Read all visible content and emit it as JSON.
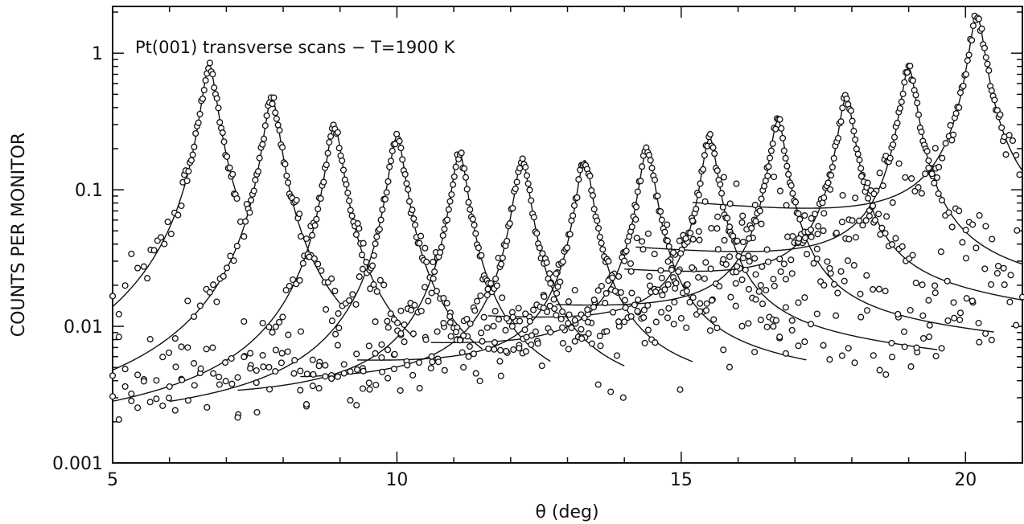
{
  "chart_data": {
    "type": "scatter",
    "title": "Pt(001) transverse scans − T=1900 K",
    "xlabel": "θ (deg)",
    "ylabel": "COUNTS PER MONITOR",
    "xlim": [
      5,
      21
    ],
    "ylim": [
      0.001,
      2.2
    ],
    "yscale": "log",
    "grid": false,
    "legend": "none",
    "x_ticks": [
      5,
      10,
      15,
      20
    ],
    "y_ticks": [
      0.001,
      0.01,
      0.1,
      1
    ],
    "x_tick_labels": [
      "5",
      "10",
      "15",
      "20"
    ],
    "y_tick_labels": [
      "0.001",
      "0.01",
      "0.1",
      "1"
    ],
    "series": [
      {
        "peak_x": 6.7,
        "peak_y": 0.78,
        "background": 0.0014,
        "bg_slope": 0.03,
        "x_start": 5.0,
        "x_end": 7.2
      },
      {
        "peak_x": 7.8,
        "peak_y": 0.46,
        "background": 0.0016,
        "bg_slope": 0.02,
        "x_start": 5.0,
        "x_end": 9.0
      },
      {
        "peak_x": 8.9,
        "peak_y": 0.29,
        "background": 0.0018,
        "bg_slope": 0.015,
        "x_start": 5.0,
        "x_end": 10.3
      },
      {
        "peak_x": 10.0,
        "peak_y": 0.24,
        "background": 0.002,
        "bg_slope": 0.01,
        "x_start": 6.0,
        "x_end": 11.5
      },
      {
        "peak_x": 11.1,
        "peak_y": 0.18,
        "background": 0.0024,
        "bg_slope": -0.01,
        "x_start": 7.2,
        "x_end": 12.7
      },
      {
        "peak_x": 12.2,
        "peak_y": 0.16,
        "background": 0.003,
        "bg_slope": -0.02,
        "x_start": 8.3,
        "x_end": 14.0
      },
      {
        "peak_x": 13.3,
        "peak_y": 0.16,
        "background": 0.0038,
        "bg_slope": -0.03,
        "x_start": 9.3,
        "x_end": 15.2
      },
      {
        "peak_x": 14.4,
        "peak_y": 0.19,
        "background": 0.0052,
        "bg_slope": -0.03,
        "x_start": 10.6,
        "x_end": 17.2
      },
      {
        "peak_x": 15.5,
        "peak_y": 0.23,
        "background": 0.008,
        "bg_slope": -0.035,
        "x_start": 11.6,
        "x_end": 19.5
      },
      {
        "peak_x": 16.7,
        "peak_y": 0.31,
        "background": 0.01,
        "bg_slope": -0.03,
        "x_start": 12.8,
        "x_end": 20.5
      },
      {
        "peak_x": 17.9,
        "peak_y": 0.45,
        "background": 0.017,
        "bg_slope": -0.04,
        "x_start": 14.0,
        "x_end": 21.0
      },
      {
        "peak_x": 19.0,
        "peak_y": 0.75,
        "background": 0.023,
        "bg_slope": -0.04,
        "x_start": 14.2,
        "x_end": 21.0
      },
      {
        "peak_x": 20.2,
        "peak_y": 1.8,
        "background": 0.045,
        "bg_slope": -0.045,
        "x_start": 15.2,
        "x_end": 21.0
      }
    ]
  }
}
